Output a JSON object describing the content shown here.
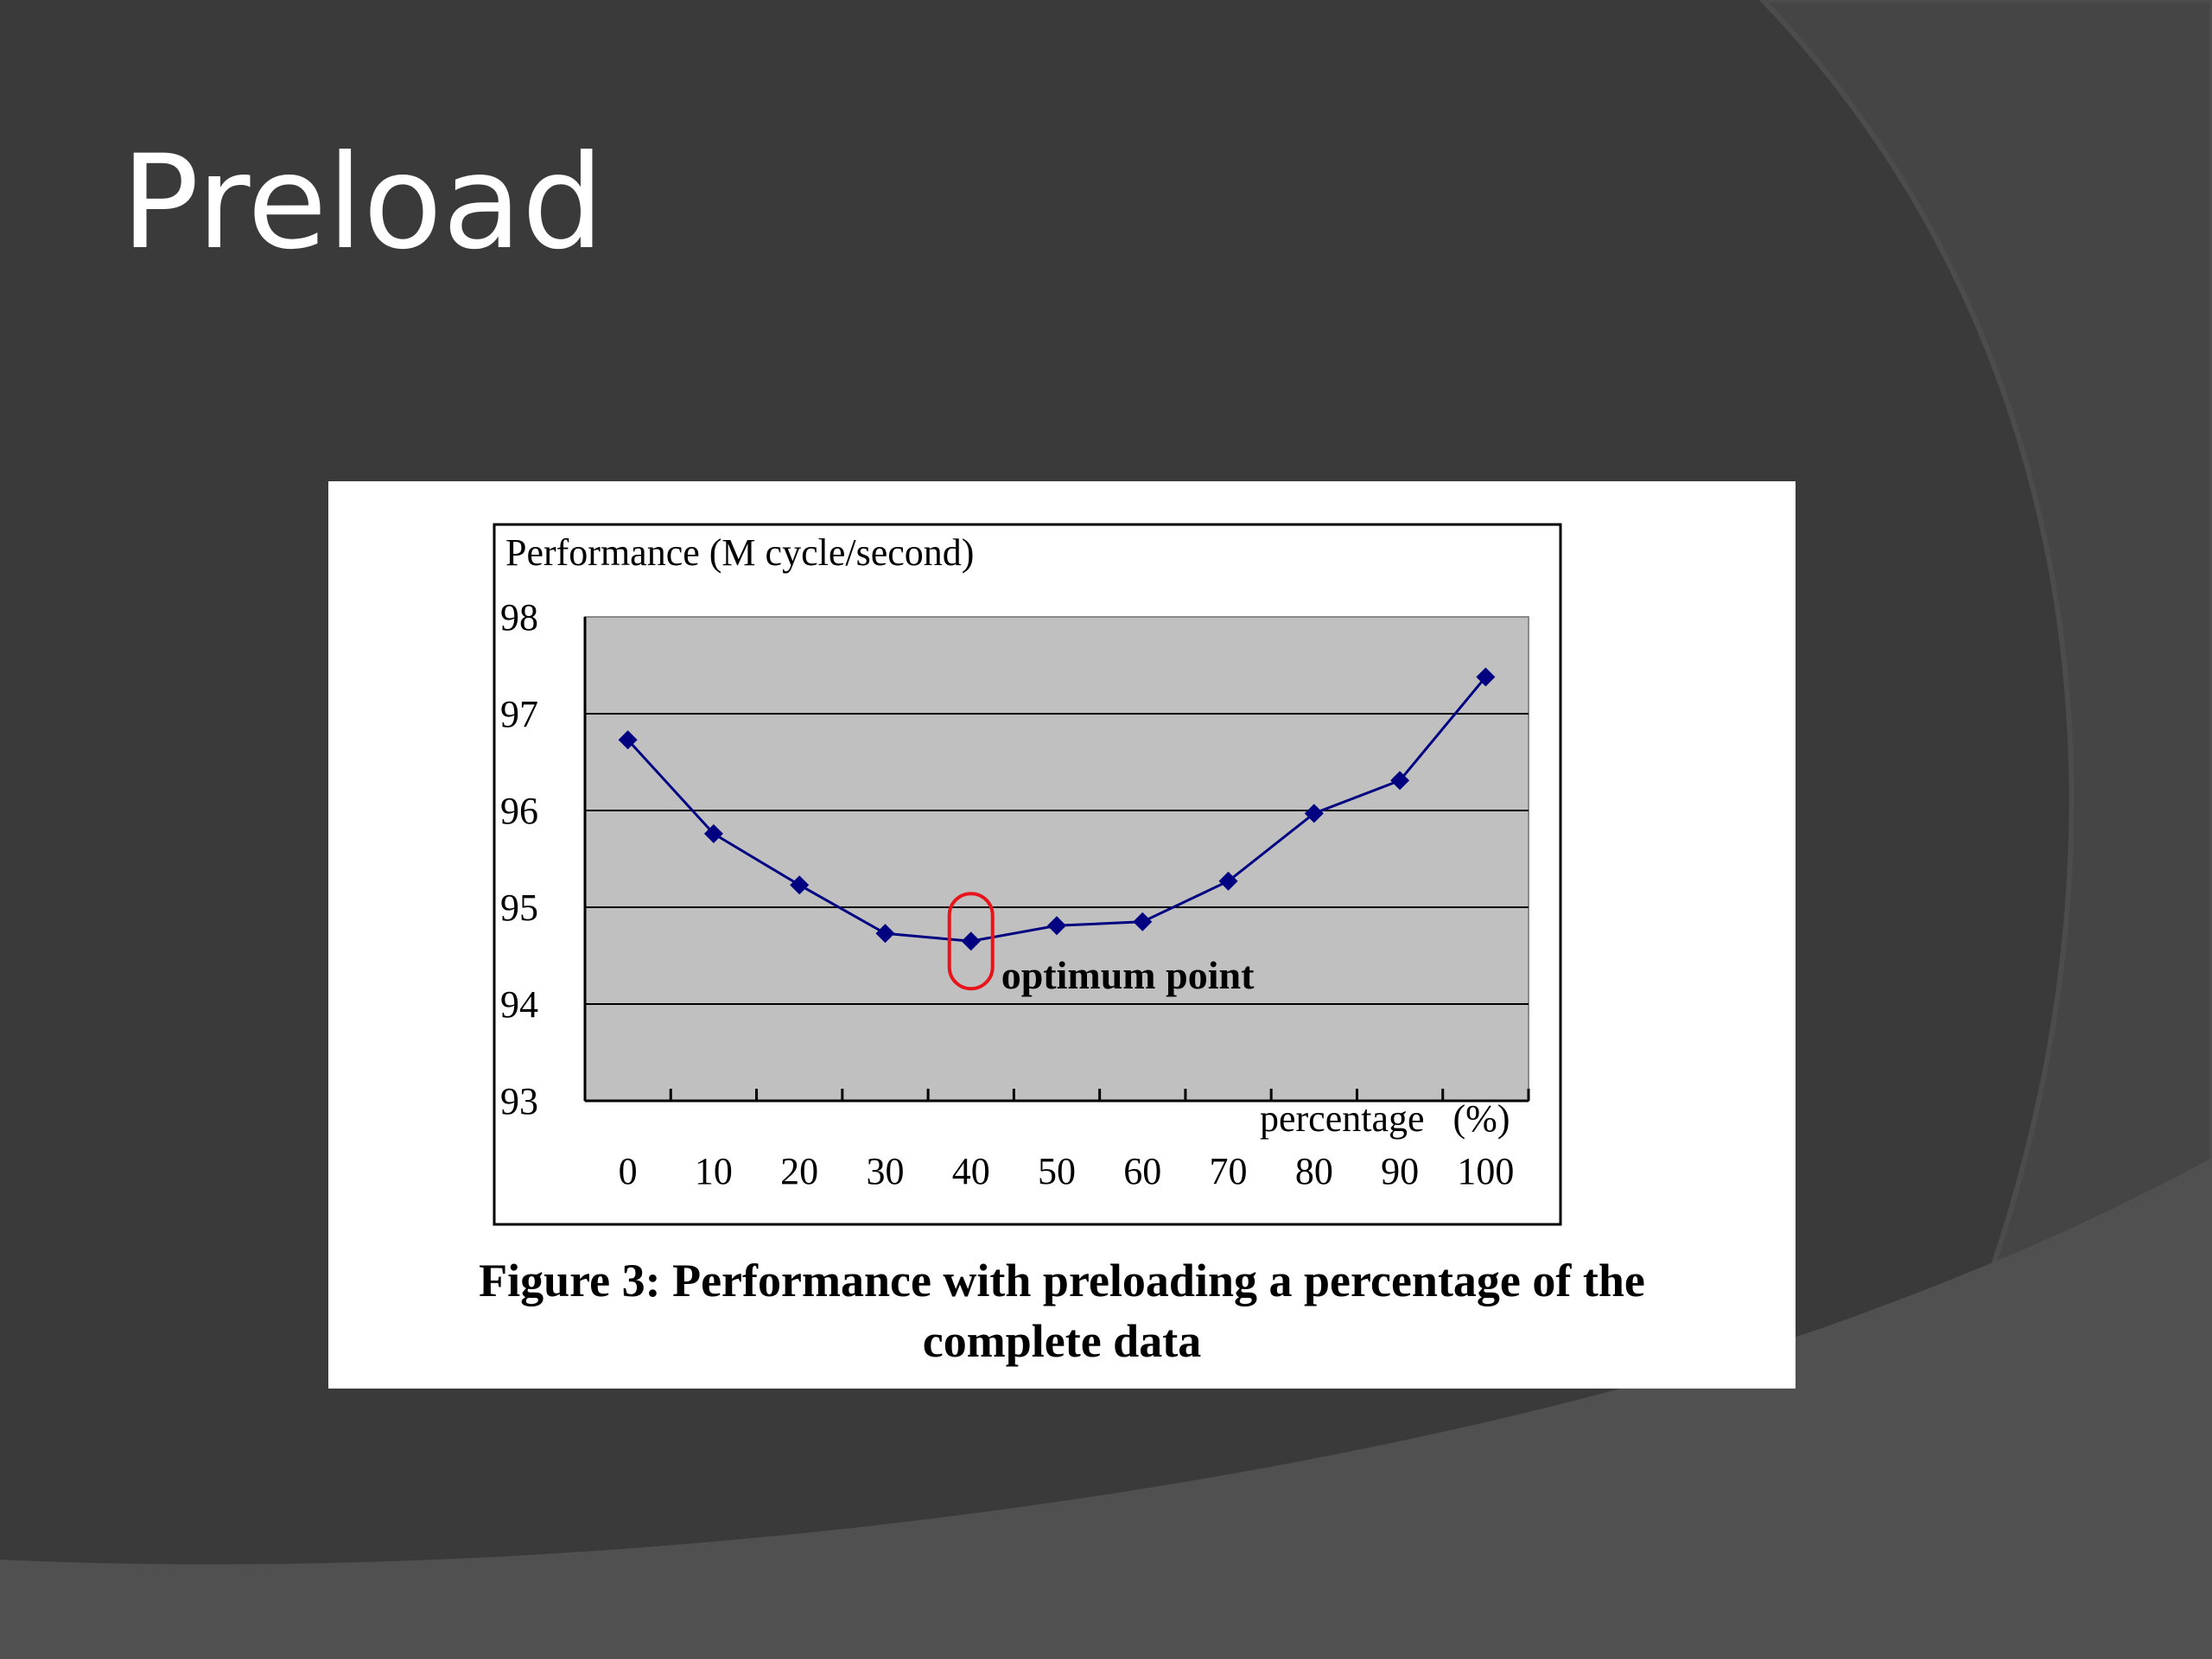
{
  "slide": {
    "title": "Preload"
  },
  "colors": {
    "background": "#3a3a3a",
    "background_arc": "#454545",
    "background_band": "#505050",
    "plot_fill": "#c0c0c0",
    "series": "#000080",
    "highlight": "#e8141c"
  },
  "figure": {
    "caption_line1": "Figure 3: Performance with preloading a percentage of the",
    "caption_line2": "complete data"
  },
  "chart_data": {
    "type": "line",
    "ylabel": "Performance (M cycle/second)",
    "xlabel": "percentage   (%)",
    "x": [
      0,
      10,
      20,
      30,
      40,
      50,
      60,
      70,
      80,
      90,
      100
    ],
    "x_tick_labels": [
      "0",
      "10",
      "20",
      "30",
      "40",
      "50",
      "60",
      "70",
      "80",
      "90",
      "100"
    ],
    "y_tick_labels": [
      "98",
      "97",
      "96",
      "95",
      "94",
      "93"
    ],
    "ylim": [
      93,
      98
    ],
    "grid": true,
    "series": [
      {
        "values": [
          96.73,
          95.76,
          95.23,
          94.73,
          94.65,
          94.81,
          94.85,
          95.27,
          95.97,
          96.31,
          97.38
        ],
        "marker": "diamond"
      }
    ],
    "annotations": [
      {
        "text": "optimum point",
        "x": 40,
        "y": 94.65,
        "highlight": "rounded-rect"
      }
    ]
  }
}
